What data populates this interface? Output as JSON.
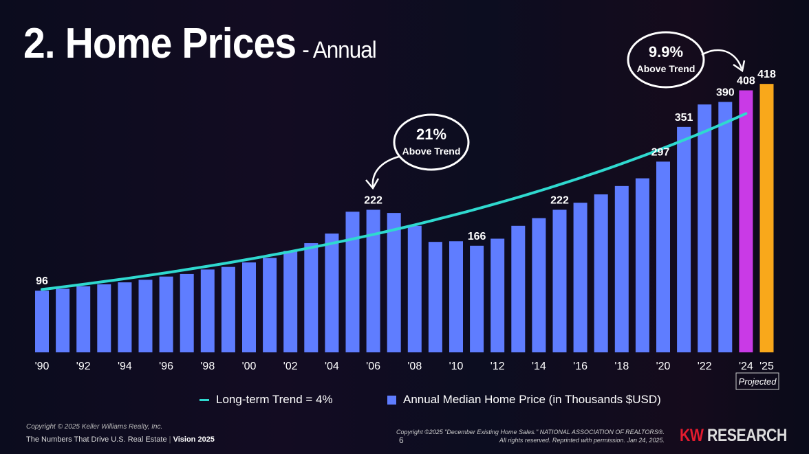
{
  "title": "2. Home Prices",
  "subtitle": "- Annual",
  "chart_data": {
    "type": "bar",
    "title": "2. Home Prices - Annual",
    "x": [
      1990,
      1991,
      1992,
      1993,
      1994,
      1995,
      1996,
      1997,
      1998,
      1999,
      2000,
      2001,
      2002,
      2003,
      2004,
      2005,
      2006,
      2007,
      2008,
      2009,
      2010,
      2011,
      2012,
      2013,
      2014,
      2015,
      2016,
      2017,
      2018,
      2019,
      2020,
      2021,
      2022,
      2023,
      2024,
      2025
    ],
    "tick_labels": [
      "'90",
      "'92",
      "'94",
      "'96",
      "'98",
      "'00",
      "'02",
      "'04",
      "'06",
      "'08",
      "'10",
      "'12",
      "'14",
      "'16",
      "'18",
      "'20",
      "'22",
      "'24",
      "'25"
    ],
    "tick_years": [
      1990,
      1992,
      1994,
      1996,
      1998,
      2000,
      2002,
      2004,
      2006,
      2008,
      2010,
      2012,
      2014,
      2016,
      2018,
      2020,
      2022,
      2024,
      2025
    ],
    "series": [
      {
        "name": "Annual Median Home Price (in Thousands $USD)",
        "values": [
          96,
          99,
          103,
          106,
          109,
          113,
          118,
          122,
          129,
          133,
          140,
          147,
          158,
          170,
          185,
          219,
          222,
          217,
          197,
          172,
          173,
          166,
          177,
          197,
          209,
          222,
          233,
          246,
          259,
          271,
          297,
          351,
          386,
          390,
          408,
          418
        ],
        "color": "#5f7dff",
        "highlight": {
          "2024": "#c93ae6",
          "2025": "#f9a81b"
        }
      },
      {
        "name": "Long-term Trend = 4%",
        "type": "line",
        "start_year": 1990,
        "end_year": 2024,
        "start_value": 98,
        "growth_rate": 0.04,
        "color": "#2fd9cf"
      }
    ],
    "data_labels": [
      {
        "year": 1990,
        "text": "96"
      },
      {
        "year": 2006,
        "text": "222"
      },
      {
        "year": 2011,
        "text": "166"
      },
      {
        "year": 2015,
        "text": "222"
      },
      {
        "year": 2020,
        "text": "297"
      },
      {
        "year": 2021,
        "text": "351"
      },
      {
        "year": 2023,
        "text": "390"
      },
      {
        "year": 2024,
        "text": "408"
      },
      {
        "year": 2025,
        "text": "418"
      }
    ],
    "annotations": [
      {
        "pct": "21%",
        "text": "Above Trend",
        "year": 2006
      },
      {
        "pct": "9.9%",
        "text": "Above Trend",
        "year": 2024
      }
    ],
    "projected_label": "Projected",
    "ylim": [
      0,
      440
    ],
    "legend": "bottom"
  },
  "legend": {
    "trend": "Long-term Trend = 4%",
    "bars": "Annual Median Home Price (in Thousands $USD)"
  },
  "footer": {
    "copyright": "Copyright © 2025 Keller Williams Realty, Inc.",
    "tagline": "The Numbers That Drive U.S. Real Estate",
    "vision": "Vision 2025",
    "page": "6",
    "credit1": "Copyright ©2025 \"December Existing Home Sales.\" NATIONAL ASSOCIATION OF REALTORS®.",
    "credit2": "All rights reserved. Reprinted with permission. Jan 24, 2025.",
    "brand_kw": "KW",
    "brand_rest": "RESEARCH"
  }
}
